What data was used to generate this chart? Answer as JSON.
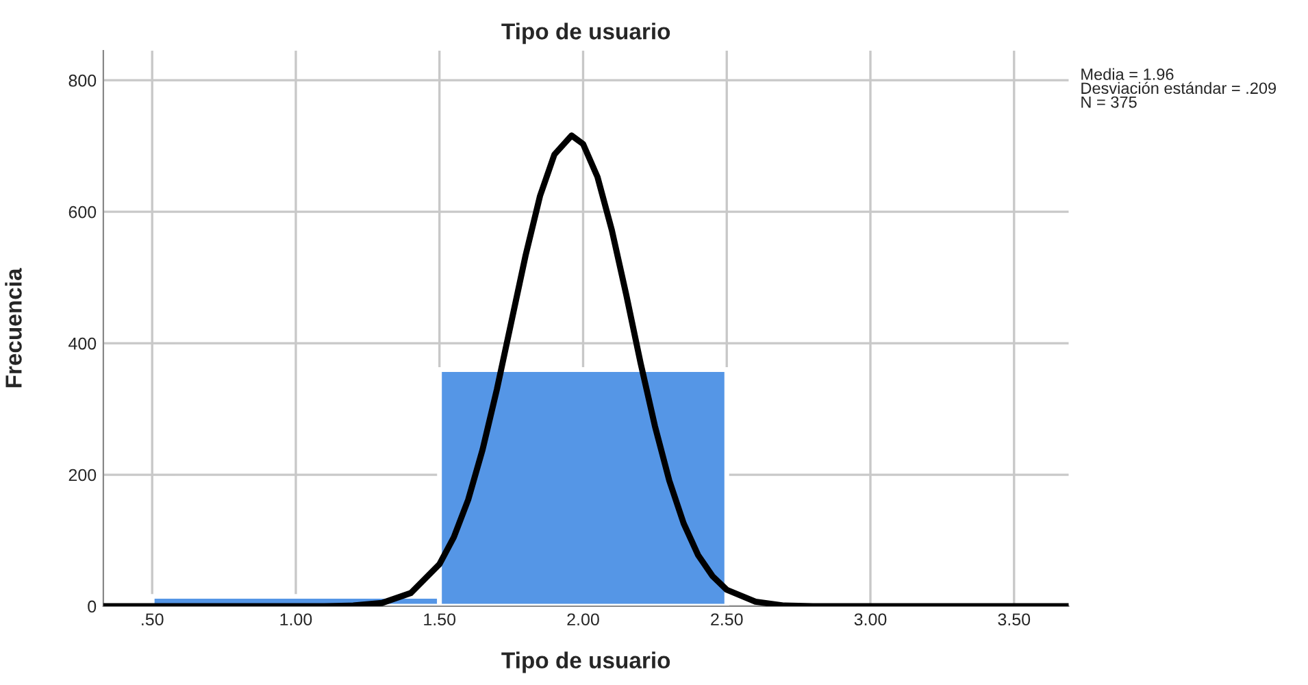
{
  "chart_data": {
    "type": "histogram",
    "title": "Tipo de usuario",
    "xlabel": "Tipo de usuario",
    "ylabel": "Frecuencia",
    "bins": [
      0.5,
      1.5,
      2.5
    ],
    "values": [
      15,
      360
    ],
    "color": "#5596e6",
    "series": [
      {
        "type": "line",
        "color": "#000000",
        "x": [
          0.33,
          1.1,
          1.2,
          1.3,
          1.4,
          1.5,
          1.55,
          1.6,
          1.65,
          1.7,
          1.75,
          1.8,
          1.85,
          1.9,
          1.96,
          2.0,
          2.05,
          2.1,
          2.15,
          2.2,
          2.25,
          2.3,
          2.35,
          2.4,
          2.45,
          2.5,
          2.6,
          2.7,
          2.8,
          3.69
        ],
        "values": [
          0,
          0,
          1,
          5,
          20,
          64,
          105,
          162,
          238,
          330,
          432,
          534,
          624,
          687,
          716,
          703,
          653,
          572,
          474,
          370,
          274,
          191,
          126,
          78,
          46,
          25,
          7,
          1,
          0,
          0
        ]
      }
    ],
    "xlim": [
      0.33,
      3.69
    ],
    "ylim": [
      0,
      845
    ],
    "xticks": [
      {
        "value": 0.5,
        "label": ".50"
      },
      {
        "value": 1.0,
        "label": "1.00"
      },
      {
        "value": 1.5,
        "label": "1.50"
      },
      {
        "value": 2.0,
        "label": "2.00"
      },
      {
        "value": 2.5,
        "label": "2.50"
      },
      {
        "value": 3.0,
        "label": "3.00"
      },
      {
        "value": 3.5,
        "label": "3.50"
      }
    ],
    "yticks": [
      0,
      200,
      400,
      600,
      800
    ],
    "grid": true,
    "annotations": [
      "Media = 1.96",
      "Desviación estándar = .209",
      "N = 375"
    ]
  }
}
